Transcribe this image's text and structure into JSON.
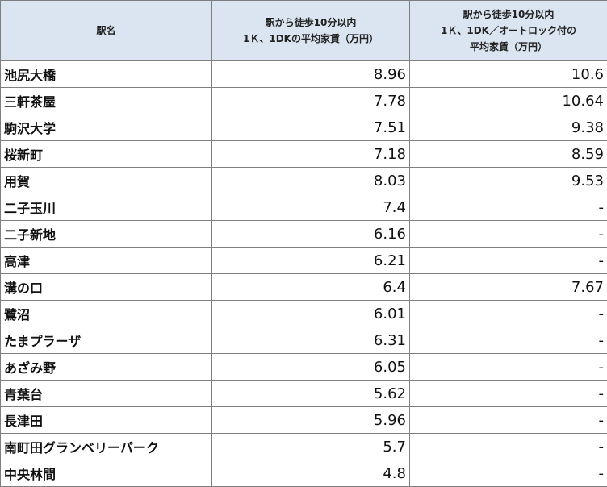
{
  "table": {
    "header": [
      [
        "駅名"
      ],
      [
        "駅から徒歩10分以内",
        "1Ｋ、1DKの平均家賃（万円）"
      ],
      [
        "駅から徒歩10分以内",
        "1Ｋ、1DK／オートロック付の",
        "平均家賃（万円）"
      ]
    ],
    "rows": [
      [
        "池尻大橋",
        8.96,
        10.6
      ],
      [
        "三軒茶屋",
        7.78,
        10.64
      ],
      [
        "駒沢大学",
        7.51,
        9.38
      ],
      [
        "桜新町",
        7.18,
        8.59
      ],
      [
        "用賀",
        8.03,
        9.53
      ],
      [
        "二子玉川",
        7.4,
        "-"
      ],
      [
        "二子新地",
        6.16,
        "-"
      ],
      [
        "高津",
        6.21,
        "-"
      ],
      [
        "溝の口",
        6.4,
        7.67
      ],
      [
        "鷺沼",
        6.01,
        "-"
      ],
      [
        "たまプラーザ",
        6.31,
        "-"
      ],
      [
        "あざみ野",
        6.05,
        "-"
      ],
      [
        "青葉台",
        5.62,
        "-"
      ],
      [
        "長津田",
        5.96,
        "-"
      ],
      [
        "南町田グランベリーパーク",
        5.7,
        "-"
      ],
      [
        "中央林間",
        4.8,
        "-"
      ]
    ]
  }
}
